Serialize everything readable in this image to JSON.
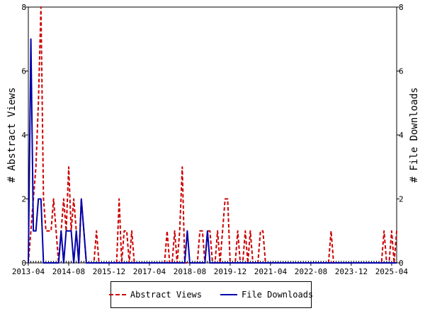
{
  "chart_data": {
    "type": "line",
    "title": "",
    "x_tick_labels": [
      "2013-04",
      "2014-08",
      "2015-12",
      "2017-04",
      "2018-08",
      "2019-12",
      "2021-04",
      "2022-08",
      "2023-12",
      "2025-04"
    ],
    "x_range": [
      "2013-04",
      "2025-06"
    ],
    "y_left": {
      "label": "# Abstract Views",
      "range": [
        0,
        8
      ],
      "ticks": [
        "0",
        "2",
        "4",
        "6",
        "8"
      ]
    },
    "y_right": {
      "label": "# File Downloads",
      "range": [
        0,
        8
      ],
      "ticks": [
        "0",
        "2",
        "4",
        "6",
        "8"
      ]
    },
    "grid": false,
    "legend_position": "bottom",
    "series": [
      {
        "name": "Abstract Views",
        "axis": "left",
        "color": "#cc0000",
        "style": "dashed",
        "points": [
          [
            "2013-04",
            0
          ],
          [
            "2013-05",
            1
          ],
          [
            "2013-06",
            2
          ],
          [
            "2013-07",
            3
          ],
          [
            "2013-08",
            5
          ],
          [
            "2013-09",
            8
          ],
          [
            "2013-10",
            2
          ],
          [
            "2013-11",
            1
          ],
          [
            "2013-12",
            1
          ],
          [
            "2014-01",
            1
          ],
          [
            "2014-02",
            2
          ],
          [
            "2014-03",
            1
          ],
          [
            "2014-04",
            0
          ],
          [
            "2014-05",
            1
          ],
          [
            "2014-06",
            2
          ],
          [
            "2014-07",
            1
          ],
          [
            "2014-08",
            3
          ],
          [
            "2014-09",
            1
          ],
          [
            "2014-10",
            2
          ],
          [
            "2014-11",
            1
          ],
          [
            "2014-12",
            0
          ],
          [
            "2015-01",
            2
          ],
          [
            "2015-02",
            1
          ],
          [
            "2015-03",
            0
          ],
          [
            "2015-04",
            0
          ],
          [
            "2015-05",
            0
          ],
          [
            "2015-06",
            0
          ],
          [
            "2015-07",
            1
          ],
          [
            "2015-08",
            0
          ],
          [
            "2015-09",
            0
          ],
          [
            "2015-10",
            0
          ],
          [
            "2015-11",
            0
          ],
          [
            "2015-12",
            0
          ],
          [
            "2016-01",
            0
          ],
          [
            "2016-02",
            0
          ],
          [
            "2016-03",
            0
          ],
          [
            "2016-04",
            2
          ],
          [
            "2016-05",
            0
          ],
          [
            "2016-06",
            1
          ],
          [
            "2016-07",
            1
          ],
          [
            "2016-08",
            0
          ],
          [
            "2016-09",
            1
          ],
          [
            "2016-10",
            0
          ],
          [
            "2016-11",
            0
          ],
          [
            "2016-12",
            0
          ],
          [
            "2017-01",
            0
          ],
          [
            "2017-02",
            0
          ],
          [
            "2017-03",
            0
          ],
          [
            "2017-04",
            0
          ],
          [
            "2017-05",
            0
          ],
          [
            "2017-06",
            0
          ],
          [
            "2017-07",
            0
          ],
          [
            "2017-08",
            0
          ],
          [
            "2017-09",
            0
          ],
          [
            "2017-10",
            0
          ],
          [
            "2017-11",
            1
          ],
          [
            "2017-12",
            0
          ],
          [
            "2018-01",
            0
          ],
          [
            "2018-02",
            1
          ],
          [
            "2018-03",
            0
          ],
          [
            "2018-04",
            1
          ],
          [
            "2018-05",
            3
          ],
          [
            "2018-06",
            0
          ],
          [
            "2018-07",
            0
          ],
          [
            "2018-08",
            0
          ],
          [
            "2018-09",
            0
          ],
          [
            "2018-10",
            0
          ],
          [
            "2018-11",
            0
          ],
          [
            "2018-12",
            1
          ],
          [
            "2019-01",
            1
          ],
          [
            "2019-02",
            0
          ],
          [
            "2019-03",
            1
          ],
          [
            "2019-04",
            1
          ],
          [
            "2019-05",
            0
          ],
          [
            "2019-06",
            0
          ],
          [
            "2019-07",
            1
          ],
          [
            "2019-08",
            0
          ],
          [
            "2019-09",
            1
          ],
          [
            "2019-10",
            2
          ],
          [
            "2019-11",
            2
          ],
          [
            "2019-12",
            0
          ],
          [
            "2020-01",
            0
          ],
          [
            "2020-02",
            0
          ],
          [
            "2020-03",
            1
          ],
          [
            "2020-04",
            0
          ],
          [
            "2020-05",
            0
          ],
          [
            "2020-06",
            1
          ],
          [
            "2020-07",
            0
          ],
          [
            "2020-08",
            1
          ],
          [
            "2020-09",
            0
          ],
          [
            "2020-10",
            0
          ],
          [
            "2020-11",
            0
          ],
          [
            "2020-12",
            1
          ],
          [
            "2021-01",
            1
          ],
          [
            "2021-02",
            0
          ],
          [
            "2021-03",
            0
          ],
          [
            "2023-03",
            0
          ],
          [
            "2023-04",
            1
          ],
          [
            "2023-05",
            0
          ],
          [
            "2024-12",
            0
          ],
          [
            "2025-01",
            1
          ],
          [
            "2025-02",
            0
          ],
          [
            "2025-03",
            0
          ],
          [
            "2025-04",
            1
          ],
          [
            "2025-05",
            0
          ],
          [
            "2025-06",
            1
          ]
        ]
      },
      {
        "name": "File Downloads",
        "axis": "right",
        "color": "#0000aa",
        "style": "solid",
        "points": [
          [
            "2013-04",
            0
          ],
          [
            "2013-05",
            7
          ],
          [
            "2013-06",
            1
          ],
          [
            "2013-07",
            1
          ],
          [
            "2013-08",
            2
          ],
          [
            "2013-09",
            2
          ],
          [
            "2013-10",
            0
          ],
          [
            "2013-11",
            0
          ],
          [
            "2013-12",
            0
          ],
          [
            "2014-01",
            0
          ],
          [
            "2014-02",
            0
          ],
          [
            "2014-03",
            0
          ],
          [
            "2014-04",
            0
          ],
          [
            "2014-05",
            1
          ],
          [
            "2014-06",
            0
          ],
          [
            "2014-07",
            1
          ],
          [
            "2014-08",
            1
          ],
          [
            "2014-09",
            1
          ],
          [
            "2014-10",
            0
          ],
          [
            "2014-11",
            1
          ],
          [
            "2014-12",
            0
          ],
          [
            "2015-01",
            2
          ],
          [
            "2015-02",
            1
          ],
          [
            "2015-03",
            0
          ],
          [
            "2018-06",
            0
          ],
          [
            "2018-07",
            1
          ],
          [
            "2018-08",
            0
          ],
          [
            "2018-09",
            0
          ],
          [
            "2018-10",
            0
          ],
          [
            "2018-11",
            0
          ],
          [
            "2018-12",
            0
          ],
          [
            "2019-01",
            0
          ],
          [
            "2019-02",
            0
          ],
          [
            "2019-03",
            1
          ],
          [
            "2019-04",
            0
          ],
          [
            "2019-05",
            0
          ],
          [
            "2025-06",
            0
          ]
        ]
      }
    ]
  }
}
